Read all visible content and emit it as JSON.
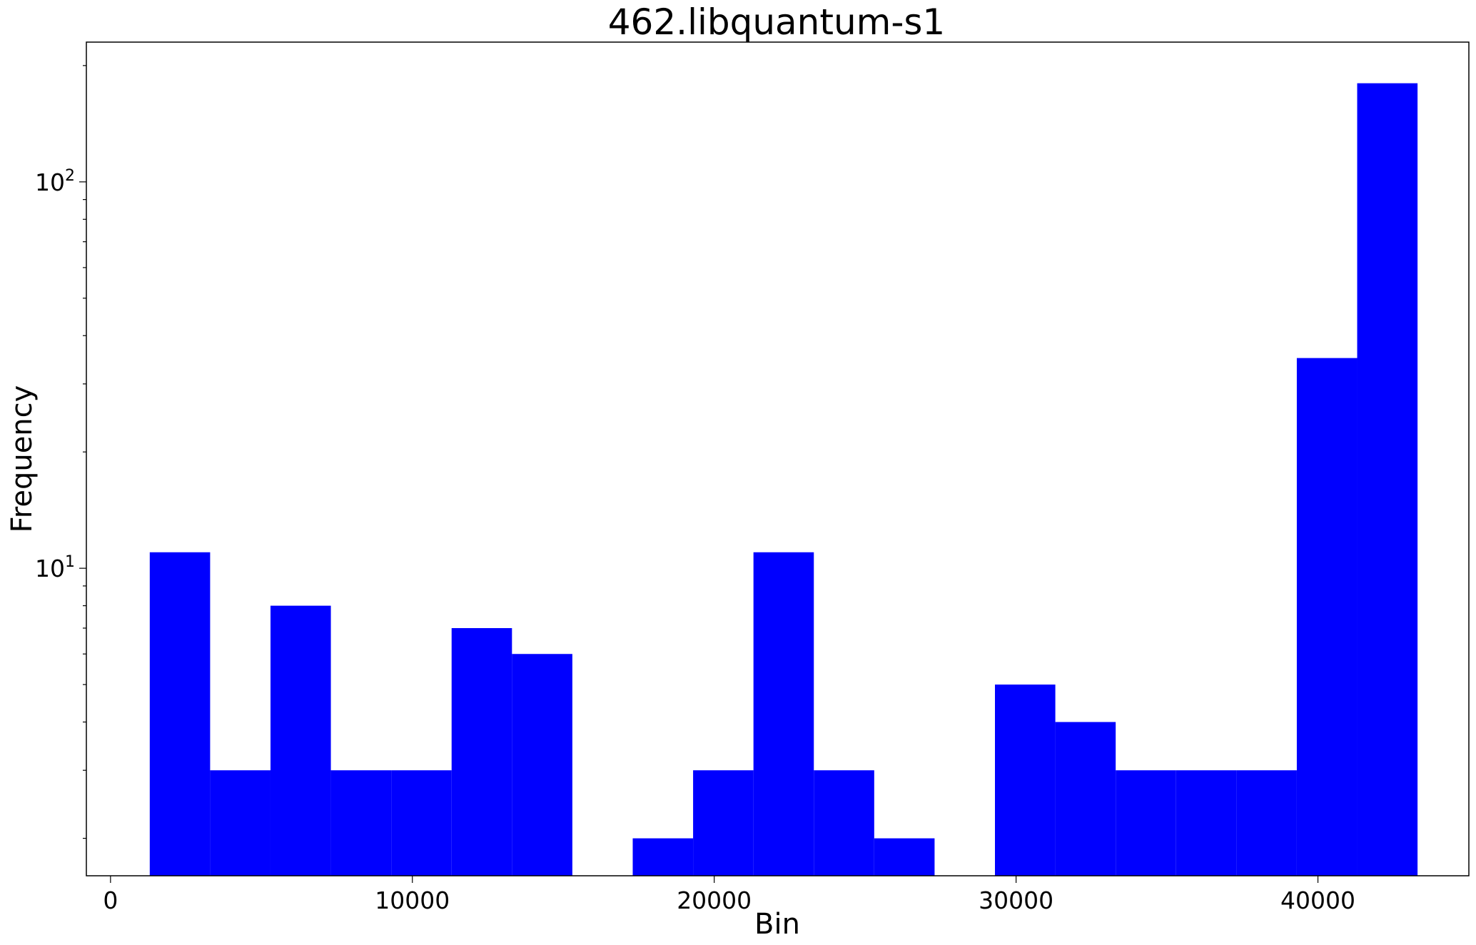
{
  "chart_data": {
    "type": "bar",
    "title": "462.libquantum-s1",
    "xlabel": "Bin",
    "ylabel": "Frequency",
    "yscale": "log",
    "xlim": [
      -800,
      45000
    ],
    "ylim": [
      1.6,
      230
    ],
    "x_ticks": [
      0,
      10000,
      20000,
      30000,
      40000
    ],
    "y_ticks": [
      {
        "value": 10,
        "base": "10",
        "exp": "1"
      },
      {
        "value": 100,
        "base": "10",
        "exp": "2"
      }
    ],
    "bar_color": "#0000ff",
    "bins": [
      {
        "start": 1300,
        "end": 3300,
        "value": 11
      },
      {
        "start": 3300,
        "end": 5300,
        "value": 3
      },
      {
        "start": 5300,
        "end": 7300,
        "value": 8
      },
      {
        "start": 7300,
        "end": 9300,
        "value": 3
      },
      {
        "start": 9300,
        "end": 11300,
        "value": 3
      },
      {
        "start": 11300,
        "end": 13300,
        "value": 7
      },
      {
        "start": 13300,
        "end": 15300,
        "value": 6
      },
      {
        "start": 15300,
        "end": 17300,
        "value": 0
      },
      {
        "start": 17300,
        "end": 19300,
        "value": 2
      },
      {
        "start": 19300,
        "end": 21300,
        "value": 3
      },
      {
        "start": 21300,
        "end": 23300,
        "value": 11
      },
      {
        "start": 23300,
        "end": 25300,
        "value": 3
      },
      {
        "start": 25300,
        "end": 27300,
        "value": 2
      },
      {
        "start": 27300,
        "end": 29300,
        "value": 0
      },
      {
        "start": 29300,
        "end": 31300,
        "value": 5
      },
      {
        "start": 31300,
        "end": 33300,
        "value": 4
      },
      {
        "start": 33300,
        "end": 35300,
        "value": 3
      },
      {
        "start": 35300,
        "end": 37300,
        "value": 3
      },
      {
        "start": 37300,
        "end": 39300,
        "value": 3
      },
      {
        "start": 39300,
        "end": 41300,
        "value": 35
      },
      {
        "start": 41300,
        "end": 43300,
        "value": 180
      }
    ]
  }
}
